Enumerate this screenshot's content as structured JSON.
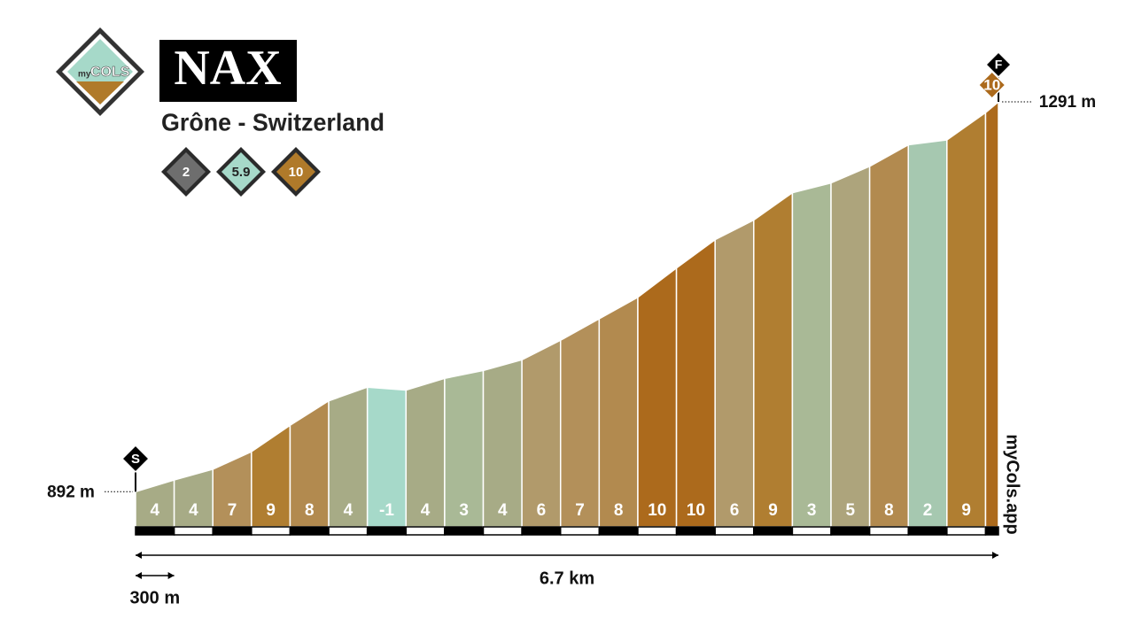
{
  "chart_data": {
    "type": "profile",
    "logo": {
      "prefix": "my",
      "name": "COLS"
    },
    "title": "NAX",
    "subtitle": "Grône - Switzerland",
    "badges": [
      {
        "value": 2,
        "color": "#6e6e6e"
      },
      {
        "value": 5.9,
        "color": "#a6d9c9"
      },
      {
        "value": 10,
        "color": "#b07a2a"
      }
    ],
    "start_marker": "S",
    "finish_marker": "F",
    "x": [
      0,
      0.3,
      0.6,
      0.9,
      1.2,
      1.5,
      1.8,
      2.1,
      2.4,
      2.7,
      3.0,
      3.3,
      3.6,
      3.9,
      4.2,
      4.5,
      4.8,
      5.1,
      5.4,
      5.7,
      6.0,
      6.3,
      6.6,
      6.7
    ],
    "elevations": [
      892,
      904,
      915,
      933,
      960,
      985,
      999,
      996,
      1008,
      1016,
      1027,
      1047,
      1069,
      1091,
      1121,
      1150,
      1170,
      1198,
      1208,
      1225,
      1247,
      1252,
      1280,
      1291
    ],
    "gradients": [
      4,
      4,
      7,
      9,
      8,
      4,
      -1,
      4,
      3,
      4,
      6,
      7,
      8,
      10,
      10,
      6,
      9,
      3,
      5,
      8,
      2,
      9,
      10
    ],
    "colors": [
      "#a7ab86",
      "#a7ab86",
      "#b3905a",
      "#b07e31",
      "#b28a4f",
      "#a7ab86",
      "#a6d9c9",
      "#a7ab86",
      "#a9b996",
      "#a7ab86",
      "#b19a6b",
      "#b3905a",
      "#b28a4f",
      "#ac6a1c",
      "#ac6a1c",
      "#b19a6b",
      "#b07e31",
      "#a9b996",
      "#ada47c",
      "#b28a4f",
      "#a6c8b0",
      "#b07e31",
      "#ac6a1c"
    ],
    "xlim": [
      0,
      6.7
    ],
    "ylim": [
      856,
      1291
    ],
    "elevation_labels": [
      {
        "value": 892,
        "label": "892 m"
      },
      {
        "value": 1291,
        "label": "1291 m"
      }
    ],
    "distance": {
      "value": 6.7,
      "label": "6.7 km"
    },
    "scale": {
      "value": 0.3,
      "label": "300 m"
    },
    "source": "myCols.app"
  }
}
